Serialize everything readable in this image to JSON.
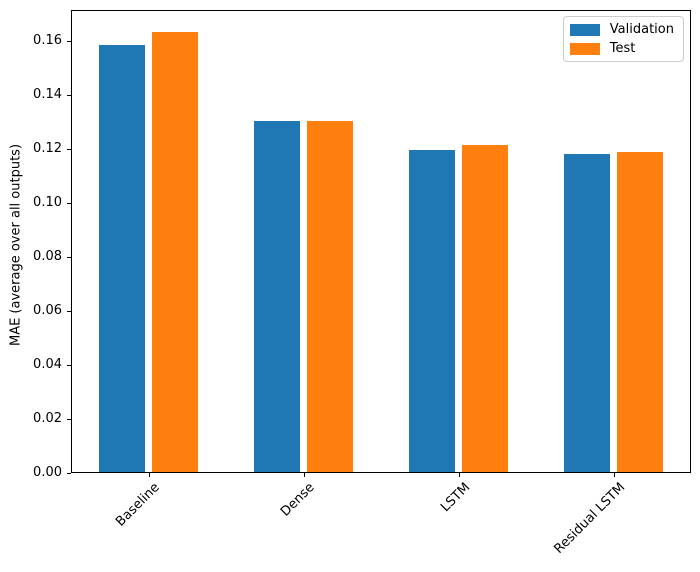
{
  "chart_data": {
    "type": "bar",
    "title": "",
    "xlabel": "",
    "ylabel": "MAE (average over all outputs)",
    "categories": [
      "Baseline",
      "Dense",
      "LSTM",
      "Residual LSTM"
    ],
    "series": [
      {
        "name": "Validation",
        "color": "#1f77b4",
        "values": [
          0.159,
          0.1308,
          0.12,
          0.1184
        ]
      },
      {
        "name": "Test",
        "color": "#ff7f0e",
        "values": [
          0.1638,
          0.1308,
          0.1217,
          0.1193
        ]
      }
    ],
    "ylim": [
      0,
      0.1716
    ],
    "xlim": [
      -0.5,
      3.5
    ],
    "yticks": [
      0.0,
      0.02,
      0.04,
      0.06,
      0.08,
      0.1,
      0.12,
      0.14,
      0.16
    ],
    "ytick_decimals": 2,
    "bar_width": 0.3,
    "bar_offsets": [
      -0.17,
      0.17
    ],
    "grid": false,
    "legend_position": "upper right",
    "xtick_rotation": 45
  }
}
